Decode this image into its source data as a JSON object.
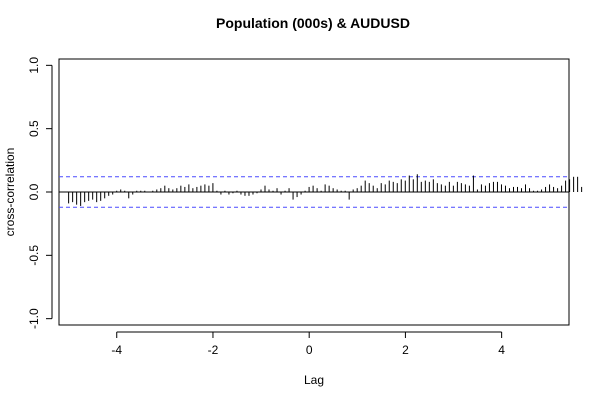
{
  "chart_data": {
    "type": "bar",
    "title": "Population (000s) & AUDUSD",
    "xlabel": "Lag",
    "ylabel": "cross-correlation",
    "xlim": [
      -5.2,
      5.4
    ],
    "ylim": [
      -1.05,
      1.05
    ],
    "x_ticks": [
      -4,
      -2,
      0,
      2,
      4
    ],
    "y_ticks": [
      -1.0,
      -0.5,
      0.0,
      0.5,
      1.0
    ],
    "x_tick_labels": [
      "-4",
      "-2",
      "0",
      "2",
      "4"
    ],
    "y_tick_labels": [
      "-1.0",
      "-0.5",
      "0.0",
      "0.5",
      "1.0"
    ],
    "ci": [
      0.12,
      -0.12
    ],
    "ci_color": "#4a4aff",
    "lag_start": -5.0,
    "lag_step": 0.0833,
    "values": [
      -0.09,
      -0.08,
      -0.1,
      -0.11,
      -0.08,
      -0.07,
      -0.06,
      -0.08,
      -0.07,
      -0.05,
      -0.03,
      -0.02,
      0.01,
      0.02,
      0.01,
      -0.05,
      -0.02,
      0.01,
      0.01,
      0.01,
      0.0,
      0.01,
      0.02,
      0.03,
      0.05,
      0.03,
      0.02,
      0.03,
      0.05,
      0.04,
      0.06,
      0.03,
      0.04,
      0.05,
      0.06,
      0.05,
      0.07,
      0.01,
      -0.02,
      0.01,
      -0.02,
      -0.01,
      0.01,
      -0.02,
      -0.03,
      -0.03,
      -0.02,
      -0.01,
      0.02,
      0.05,
      0.02,
      0.01,
      0.03,
      -0.02,
      0.01,
      0.03,
      -0.06,
      -0.04,
      -0.02,
      0.01,
      0.04,
      0.05,
      0.03,
      0.01,
      0.06,
      0.05,
      0.03,
      0.02,
      0.01,
      0.01,
      -0.06,
      0.02,
      0.03,
      0.05,
      0.09,
      0.07,
      0.05,
      0.03,
      0.07,
      0.06,
      0.09,
      0.08,
      0.07,
      0.1,
      0.09,
      0.13,
      0.1,
      0.14,
      0.08,
      0.09,
      0.08,
      0.1,
      0.07,
      0.06,
      0.05,
      0.08,
      0.05,
      0.08,
      0.07,
      0.06,
      0.05,
      0.13,
      0.02,
      0.06,
      0.05,
      0.07,
      0.08,
      0.08,
      0.06,
      0.05,
      0.03,
      0.04,
      0.04,
      0.03,
      0.06,
      0.03,
      0.01,
      0.01,
      0.02,
      0.04,
      0.06,
      0.04,
      0.03,
      0.05,
      0.09,
      0.1,
      0.12,
      0.12,
      0.04
    ]
  }
}
